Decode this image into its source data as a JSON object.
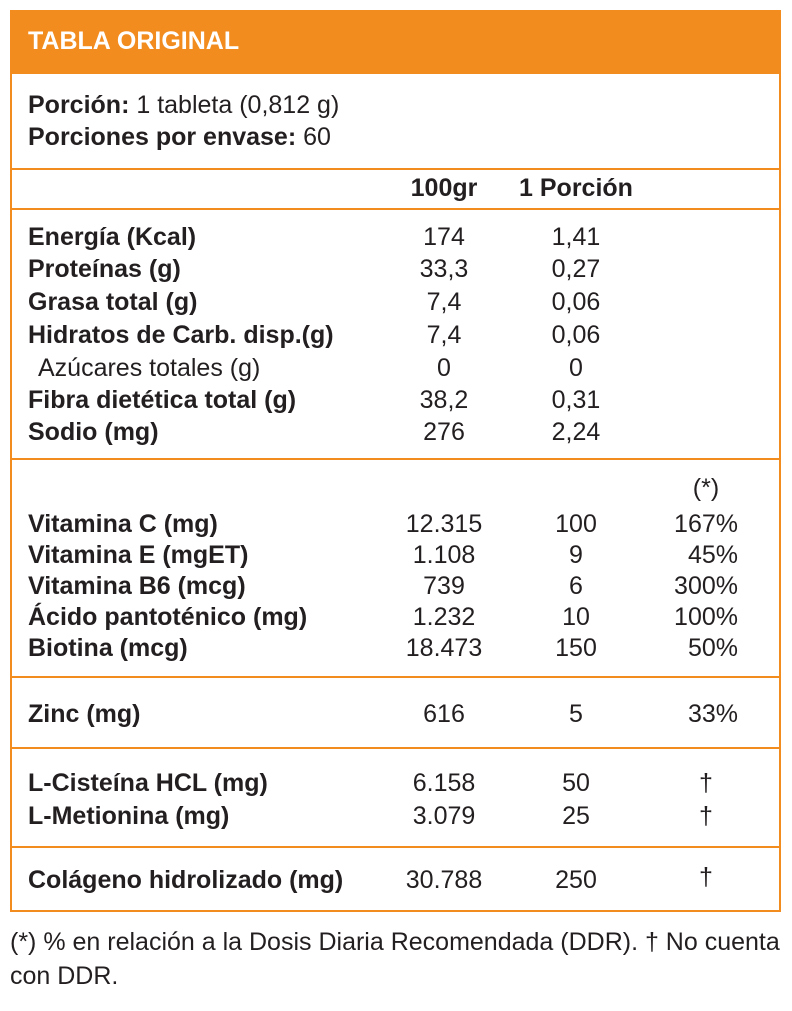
{
  "title": "TABLA ORIGINAL",
  "serving": {
    "portion_label": "Porción:",
    "portion_value": " 1 tableta (0,812 g)",
    "per_pack_label": "Porciones por envase:",
    "per_pack_value": " 60"
  },
  "columns": {
    "per100": "100gr",
    "per_portion": "1 Porción",
    "ddr": "(*)"
  },
  "macros": [
    {
      "name": "Energía (Kcal)",
      "per100": "174",
      "portion": "1,41"
    },
    {
      "name": "Proteínas (g)",
      "per100": "33,3",
      "portion": "0,27"
    },
    {
      "name": "Grasa total (g)",
      "per100": "7,4",
      "portion": "0,06"
    },
    {
      "name": "Hidratos de Carb. disp.(g)",
      "per100": "7,4",
      "portion": "0,06"
    },
    {
      "name": "Azúcares totales (g)",
      "per100": "0",
      "portion": "0"
    },
    {
      "name": "Fibra dietética total (g)",
      "per100": "38,2",
      "portion": "0,31"
    },
    {
      "name": "Sodio (mg)",
      "per100": "276",
      "portion": "2,24"
    }
  ],
  "vitamins": [
    {
      "name": "Vitamina C (mg)",
      "per100": "12.315",
      "portion": "100",
      "ddr": "167%"
    },
    {
      "name": "Vitamina E (mgET)",
      "per100": "1.108",
      "portion": "9",
      "ddr": "45%"
    },
    {
      "name": "Vitamina B6 (mcg)",
      "per100": "739",
      "portion": "6",
      "ddr": "300%"
    },
    {
      "name": "Ácido pantoténico (mg)",
      "per100": "1.232",
      "portion": "10",
      "ddr": "100%"
    },
    {
      "name": "Biotina (mcg)",
      "per100": "18.473",
      "portion": "150",
      "ddr": "50%"
    }
  ],
  "minerals": [
    {
      "name": "Zinc (mg)",
      "per100": "616",
      "portion": "5",
      "ddr": "33%"
    }
  ],
  "amino_acids": [
    {
      "name": "L-Cisteína HCL (mg)",
      "per100": "6.158",
      "portion": "50",
      "ddr": "†"
    },
    {
      "name": "L-Metionina (mg)",
      "per100": "3.079",
      "portion": "25",
      "ddr": "†"
    }
  ],
  "collagen": [
    {
      "name": "Colágeno hidrolizado (mg)",
      "per100": "30.788",
      "portion": "250",
      "ddr": "†"
    }
  ],
  "footnote": "(*) % en relación a la Dosis Diaria Recomendada (DDR). † No cuenta con DDR.",
  "colors": {
    "accent": "#f28c1e",
    "text": "#231f20",
    "header_text": "#ffffff"
  }
}
